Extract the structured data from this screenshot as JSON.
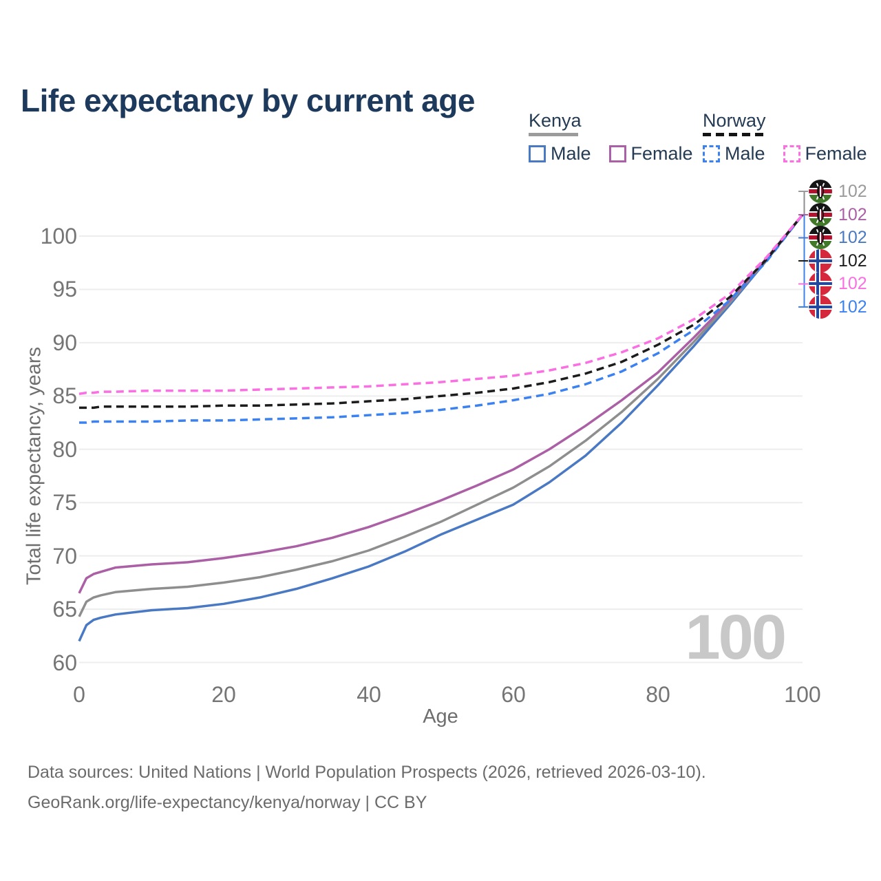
{
  "title": "Life expectancy by current age",
  "legend": {
    "groups": [
      {
        "country": "Kenya",
        "items": [
          {
            "label": "Male"
          },
          {
            "label": "Female"
          }
        ]
      },
      {
        "country": "Norway",
        "items": [
          {
            "label": "Male"
          },
          {
            "label": "Female"
          }
        ]
      }
    ]
  },
  "axes": {
    "y_title": "Total life expectancy, years",
    "x_title": "Age",
    "y_ticks": [
      "100",
      "95",
      "90",
      "85",
      "80",
      "75",
      "70",
      "65",
      "60"
    ],
    "x_ticks": [
      "0",
      "20",
      "40",
      "60",
      "80",
      "100"
    ]
  },
  "watermark": "100",
  "right_labels": [
    {
      "flag": "kenya",
      "value": "102",
      "color": "#9a9a9a"
    },
    {
      "flag": "kenya",
      "value": "102",
      "color": "#ab5fa5"
    },
    {
      "flag": "kenya",
      "value": "102",
      "color": "#4a79c4"
    },
    {
      "flag": "norway",
      "value": "102",
      "color": "#1c1c1c"
    },
    {
      "flag": "norway",
      "value": "102",
      "color": "#fa6fe2"
    },
    {
      "flag": "norway",
      "value": "102",
      "color": "#3b82f0"
    }
  ],
  "footer": {
    "line1": "Data sources: United Nations | World Population Prospects (2026, retrieved 2026-03-10).",
    "line2": "GeoRank.org/life-expectancy/kenya/norway | CC BY"
  },
  "colors": {
    "title": "#1d3a5c",
    "grid": "#ededed",
    "tick_text": "#757575",
    "watermark": "#c8c8c8",
    "kenya_male": "#4a79c4",
    "kenya_total": "#8e8e8e",
    "kenya_female": "#ab5fa5",
    "norway_male": "#3b82f0",
    "norway_total": "#1c1c1c",
    "norway_female": "#fa6fe2"
  },
  "chart_data": {
    "type": "line",
    "title": "Life expectancy by current age",
    "xlabel": "Age",
    "ylabel": "Total life expectancy, years",
    "xlim": [
      0,
      100
    ],
    "ylim": [
      60,
      100
    ],
    "grid": "horizontal",
    "legend_position": "top-right",
    "x": [
      0,
      1,
      2,
      3,
      5,
      10,
      15,
      20,
      25,
      30,
      35,
      40,
      45,
      50,
      55,
      60,
      65,
      70,
      75,
      80,
      85,
      90,
      95,
      100
    ],
    "series": [
      {
        "name": "Kenya Male",
        "style": "solid",
        "color": "#4a79c4",
        "values": [
          62.0,
          63.5,
          64.0,
          64.2,
          64.5,
          64.9,
          65.1,
          65.5,
          66.1,
          66.9,
          67.9,
          69.0,
          70.4,
          72.0,
          73.4,
          74.8,
          76.9,
          79.4,
          82.5,
          86.0,
          89.7,
          93.6,
          97.7,
          102
        ]
      },
      {
        "name": "Kenya Total",
        "style": "solid",
        "color": "#8e8e8e",
        "values": [
          64.3,
          65.7,
          66.1,
          66.3,
          66.6,
          66.9,
          67.1,
          67.5,
          68.0,
          68.7,
          69.5,
          70.5,
          71.8,
          73.2,
          74.8,
          76.4,
          78.4,
          80.8,
          83.5,
          86.6,
          90.1,
          93.8,
          97.8,
          102
        ]
      },
      {
        "name": "Kenya Female",
        "style": "solid",
        "color": "#ab5fa5",
        "values": [
          66.5,
          67.9,
          68.3,
          68.5,
          68.9,
          69.2,
          69.4,
          69.8,
          70.3,
          70.9,
          71.7,
          72.7,
          73.9,
          75.2,
          76.6,
          78.1,
          80.0,
          82.2,
          84.6,
          87.2,
          90.5,
          94.0,
          97.9,
          102
        ]
      },
      {
        "name": "Norway Male",
        "style": "dashed",
        "color": "#3b82f0",
        "values": [
          82.5,
          82.5,
          82.6,
          82.6,
          82.6,
          82.6,
          82.7,
          82.7,
          82.8,
          82.9,
          83.0,
          83.2,
          83.4,
          83.7,
          84.1,
          84.6,
          85.2,
          86.1,
          87.3,
          89.0,
          91.2,
          94.0,
          97.6,
          102
        ]
      },
      {
        "name": "Norway Total",
        "style": "dashed",
        "color": "#1c1c1c",
        "values": [
          83.9,
          83.9,
          83.9,
          84.0,
          84.0,
          84.0,
          84.0,
          84.1,
          84.1,
          84.2,
          84.3,
          84.5,
          84.7,
          85.0,
          85.3,
          85.7,
          86.3,
          87.1,
          88.2,
          89.8,
          91.7,
          94.3,
          97.8,
          102
        ]
      },
      {
        "name": "Norway Female",
        "style": "dashed",
        "color": "#fa6fe2",
        "values": [
          85.2,
          85.3,
          85.3,
          85.4,
          85.4,
          85.5,
          85.5,
          85.5,
          85.6,
          85.7,
          85.8,
          85.9,
          86.1,
          86.3,
          86.6,
          86.9,
          87.4,
          88.1,
          89.1,
          90.4,
          92.2,
          94.6,
          98.0,
          102
        ]
      }
    ],
    "end_label_value": 102,
    "end_label_age": 100
  }
}
